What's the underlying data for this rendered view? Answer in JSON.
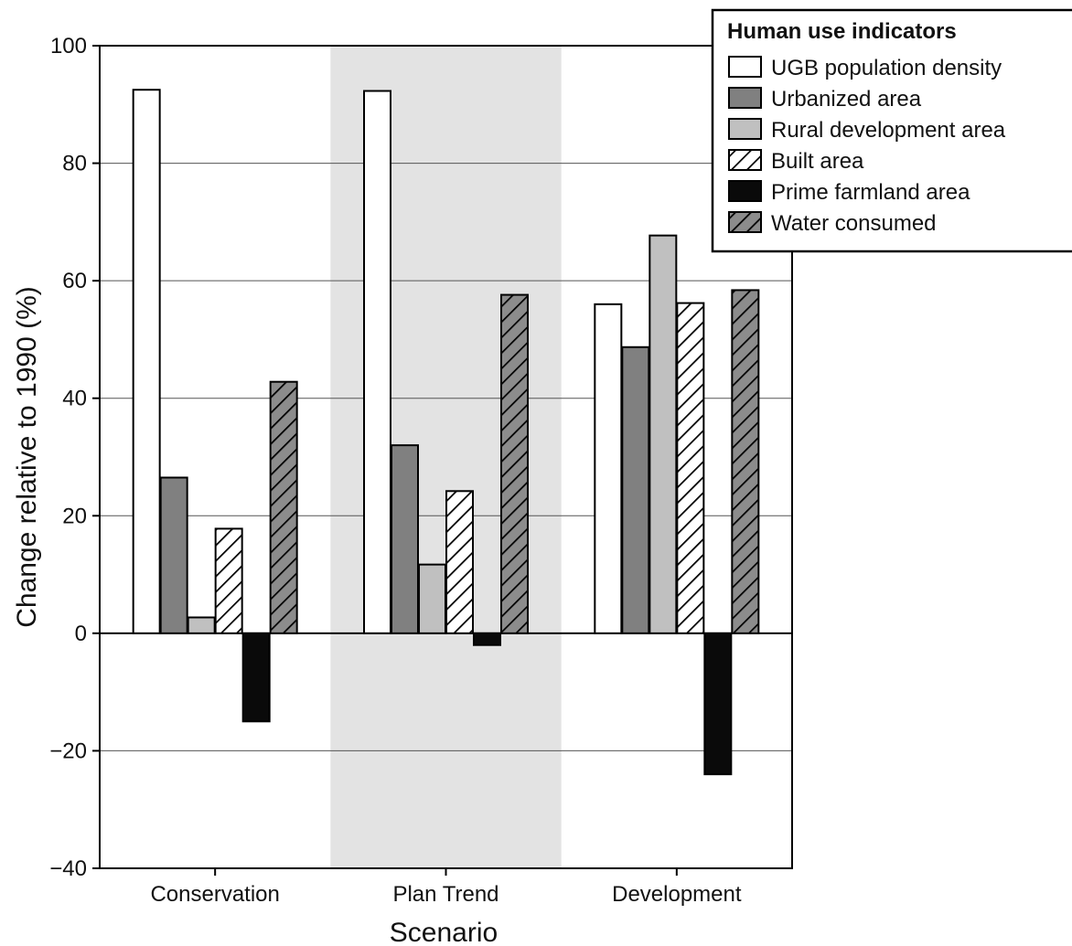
{
  "chart_data": {
    "type": "bar",
    "title": "",
    "xlabel": "Scenario",
    "ylabel": "Change relative to 1990 (%)",
    "ylim": [
      -40,
      100
    ],
    "yticks": [
      -40,
      -20,
      0,
      20,
      40,
      60,
      80,
      100
    ],
    "grid": true,
    "categories": [
      "Conservation",
      "Plan Trend",
      "Development"
    ],
    "highlighted_category": "Plan Trend",
    "highlight_color": "#e3e3e3",
    "legend": {
      "title": "Human use indicators",
      "position": "top-right"
    },
    "series": [
      {
        "name": "UGB population density",
        "values": [
          92.5,
          92.3,
          56.0
        ],
        "fill": "#ffffff",
        "pattern": "none"
      },
      {
        "name": "Urbanized area",
        "values": [
          26.5,
          32.0,
          48.7
        ],
        "fill": "#808080",
        "pattern": "none"
      },
      {
        "name": "Rural development area",
        "values": [
          2.7,
          11.7,
          67.7
        ],
        "fill": "#c0c0c0",
        "pattern": "none"
      },
      {
        "name": "Built area",
        "values": [
          17.8,
          24.2,
          56.2
        ],
        "fill": "#ffffff",
        "pattern": "hatch"
      },
      {
        "name": "Prime farmland area",
        "values": [
          -15.0,
          -2.0,
          -24.0
        ],
        "fill": "#0a0a0a",
        "pattern": "none"
      },
      {
        "name": "Water consumed",
        "values": [
          42.8,
          57.6,
          58.4
        ],
        "fill": "#8c8c8c",
        "pattern": "hatch"
      }
    ]
  }
}
